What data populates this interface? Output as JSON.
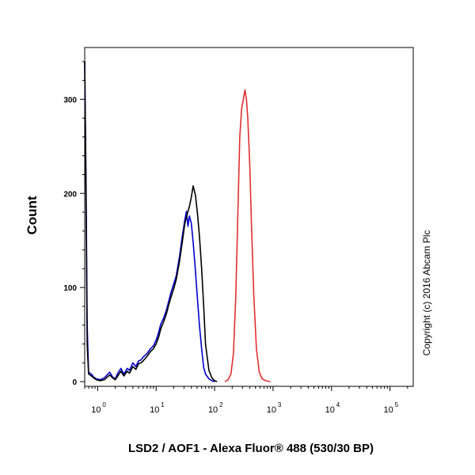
{
  "chart_data": {
    "type": "line",
    "xscale": "log",
    "xlabel": "LSD2 / AOF1 - Alexa Fluor® 488 (530/30 BP)",
    "ylabel": "Count",
    "annotation": "Copyright (c) 2016 Abcam Plc",
    "xlim": [
      0.6,
      250000
    ],
    "ylim": [
      -5,
      355
    ],
    "x_ticks": [
      {
        "value": 1,
        "base": "10",
        "exp": "0"
      },
      {
        "value": 10,
        "base": "10",
        "exp": "1"
      },
      {
        "value": 100,
        "base": "10",
        "exp": "2"
      },
      {
        "value": 1000,
        "base": "10",
        "exp": "3"
      },
      {
        "value": 10000,
        "base": "10",
        "exp": "4"
      },
      {
        "value": 100000,
        "base": "10",
        "exp": "5"
      }
    ],
    "y_ticks": [
      0,
      100,
      200,
      300
    ],
    "grid": false,
    "series": [
      {
        "color": "#0000cc",
        "x": [
          0.6,
          0.63,
          0.66,
          0.7,
          0.78,
          0.85,
          0.95,
          1.1,
          1.3,
          1.6,
          1.8,
          2.0,
          2.2,
          2.5,
          2.8,
          3.2,
          3.5,
          4,
          4.5,
          5,
          5.5,
          6,
          7,
          8,
          9,
          10,
          11,
          12,
          13.5,
          15,
          16.5,
          18,
          20,
          22,
          25,
          28,
          31,
          33,
          35,
          37,
          40,
          43,
          46,
          50,
          55,
          60,
          65,
          70,
          80,
          90,
          100
        ],
        "y": [
          340,
          220,
          60,
          10,
          8,
          5,
          3,
          2,
          4,
          10,
          5,
          3,
          9,
          14,
          8,
          14,
          12,
          20,
          16,
          22,
          23,
          26,
          30,
          35,
          38,
          44,
          52,
          61,
          68,
          76,
          86,
          95,
          104,
          112,
          132,
          154,
          172,
          181,
          165,
          176,
          168,
          148,
          125,
          95,
          60,
          35,
          15,
          8,
          3,
          1,
          0
        ]
      },
      {
        "color": "#000000",
        "x": [
          0.6,
          0.63,
          0.66,
          0.7,
          0.78,
          0.85,
          0.95,
          1.1,
          1.3,
          1.6,
          1.8,
          2.0,
          2.2,
          2.5,
          2.8,
          3.2,
          3.5,
          4,
          4.5,
          5,
          5.5,
          6,
          7,
          8,
          9,
          10,
          11,
          12,
          13.5,
          15,
          16.5,
          18,
          20,
          22,
          25,
          28,
          31,
          34,
          37,
          40,
          43,
          47,
          51,
          55,
          60,
          65,
          70,
          80,
          90,
          100,
          110
        ],
        "y": [
          340,
          200,
          40,
          8,
          6,
          4,
          2,
          1,
          2,
          7,
          4,
          2,
          6,
          11,
          6,
          11,
          9,
          16,
          13,
          19,
          20,
          22,
          27,
          32,
          35,
          40,
          47,
          56,
          64,
          72,
          82,
          90,
          99,
          108,
          127,
          148,
          168,
          178,
          186,
          196,
          208,
          198,
          178,
          155,
          120,
          80,
          40,
          12,
          4,
          1,
          0
        ]
      },
      {
        "color": "#e03030",
        "x": [
          150,
          170,
          190,
          210,
          230,
          250,
          270,
          290,
          310,
          330,
          350,
          370,
          400,
          430,
          470,
          520,
          580,
          650,
          750,
          900
        ],
        "y": [
          0,
          2,
          8,
          30,
          90,
          180,
          260,
          290,
          300,
          310,
          300,
          280,
          230,
          160,
          90,
          35,
          10,
          3,
          1,
          0
        ]
      }
    ]
  }
}
